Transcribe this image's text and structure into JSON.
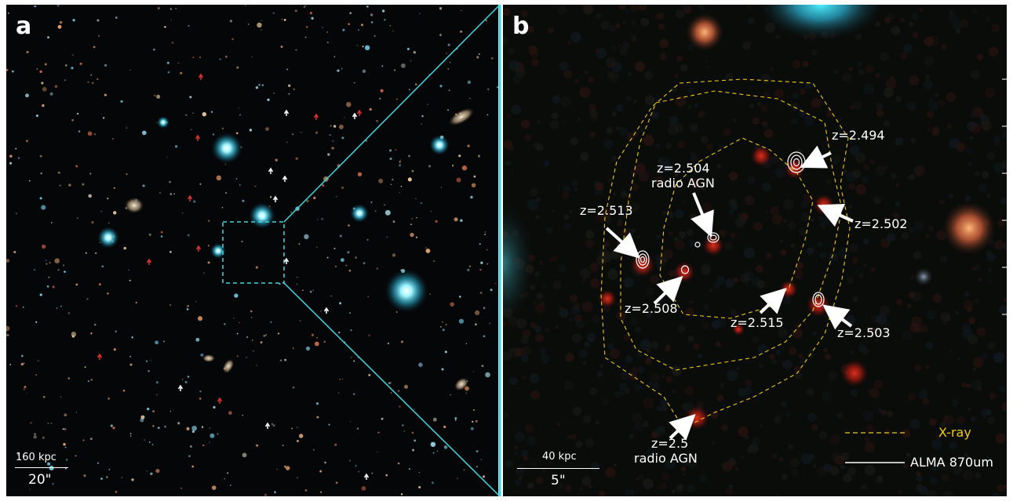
{
  "panel_a": {
    "label": "a",
    "scale_physical": "160 kpc",
    "scale_angular": "20\""
  },
  "panel_b": {
    "label": "b",
    "scale_physical": "40 kpc",
    "scale_angular": "5\"",
    "redshift_labels": [
      {
        "text": "z=2.494"
      },
      {
        "text": "z=2.504"
      },
      {
        "text": "radio AGN"
      },
      {
        "text": "z=2.513"
      },
      {
        "text": "z=2.502"
      },
      {
        "text": "z=2.508"
      },
      {
        "text": "z=2.515"
      },
      {
        "text": "z=2.503"
      },
      {
        "text": "z=2.5"
      },
      {
        "text": "radio AGN"
      }
    ],
    "legend": {
      "xray_label": "X-ray",
      "xray_color": "#f2c90d",
      "alma_label": "ALMA 870um",
      "alma_color": "#ffffff"
    }
  },
  "zoom_connector_color": "#3fd6e0"
}
